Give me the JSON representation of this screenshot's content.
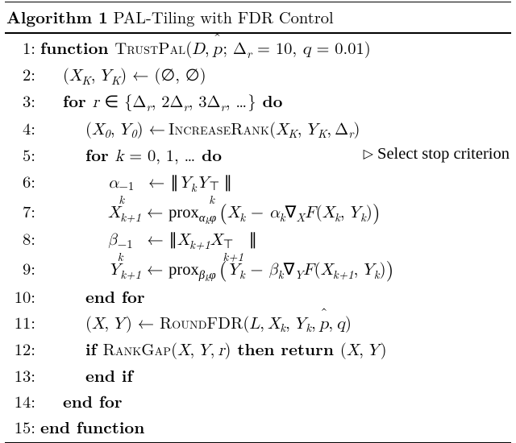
{
  "title_prefix": "Algorithm 1",
  "title_rest": " PAL-Tiling with FDR Control",
  "lines": {
    "l1_num": "1:",
    "l1_kw": "function ",
    "l1_fn": "TrustPal",
    "l1_args": "(D, p̂; Δᵣ = 10, q = 0.01)",
    "l2_num": "2:",
    "l2": "(X_K, Y_K) ← (∅, ∅)",
    "l3_num": "3:",
    "l3_kw": "for ",
    "l3_mid": "r ∈ {Δᵣ, 2Δᵣ, 3Δᵣ, …}",
    "l3_do": " do",
    "l4_num": "4:",
    "l4_lhs": "(X₀, Y₀) ← ",
    "l4_fn": "IncreaseRank",
    "l4_args": "(X_K, Y_K, Δᵣ)",
    "l5_num": "5:",
    "l5_kw": "for ",
    "l5_mid": "k = 0, 1, …",
    "l5_do": " do",
    "l5_comment": "▷ Select stop criterion",
    "l6_num": "6:",
    "l7_num": "7:",
    "l8_num": "8:",
    "l9_num": "9:",
    "l10_num": "10:",
    "l10": "end for",
    "l11_num": "11:",
    "l11_lhs": "(X, Y) ← ",
    "l11_fn": "RoundFDR",
    "l11_args": "(L, X_k, Y_k, p̂, q)",
    "l12_num": "12:",
    "l12_if": "if ",
    "l12_fn": "RankGap",
    "l12_args": "(X, Y, r)",
    "l12_then": " then return ",
    "l12_ret": "(X, Y)",
    "l13_num": "13:",
    "l13": "end if",
    "l14_num": "14:",
    "l14": "end for",
    "l15_num": "15:",
    "l15": "end function"
  }
}
